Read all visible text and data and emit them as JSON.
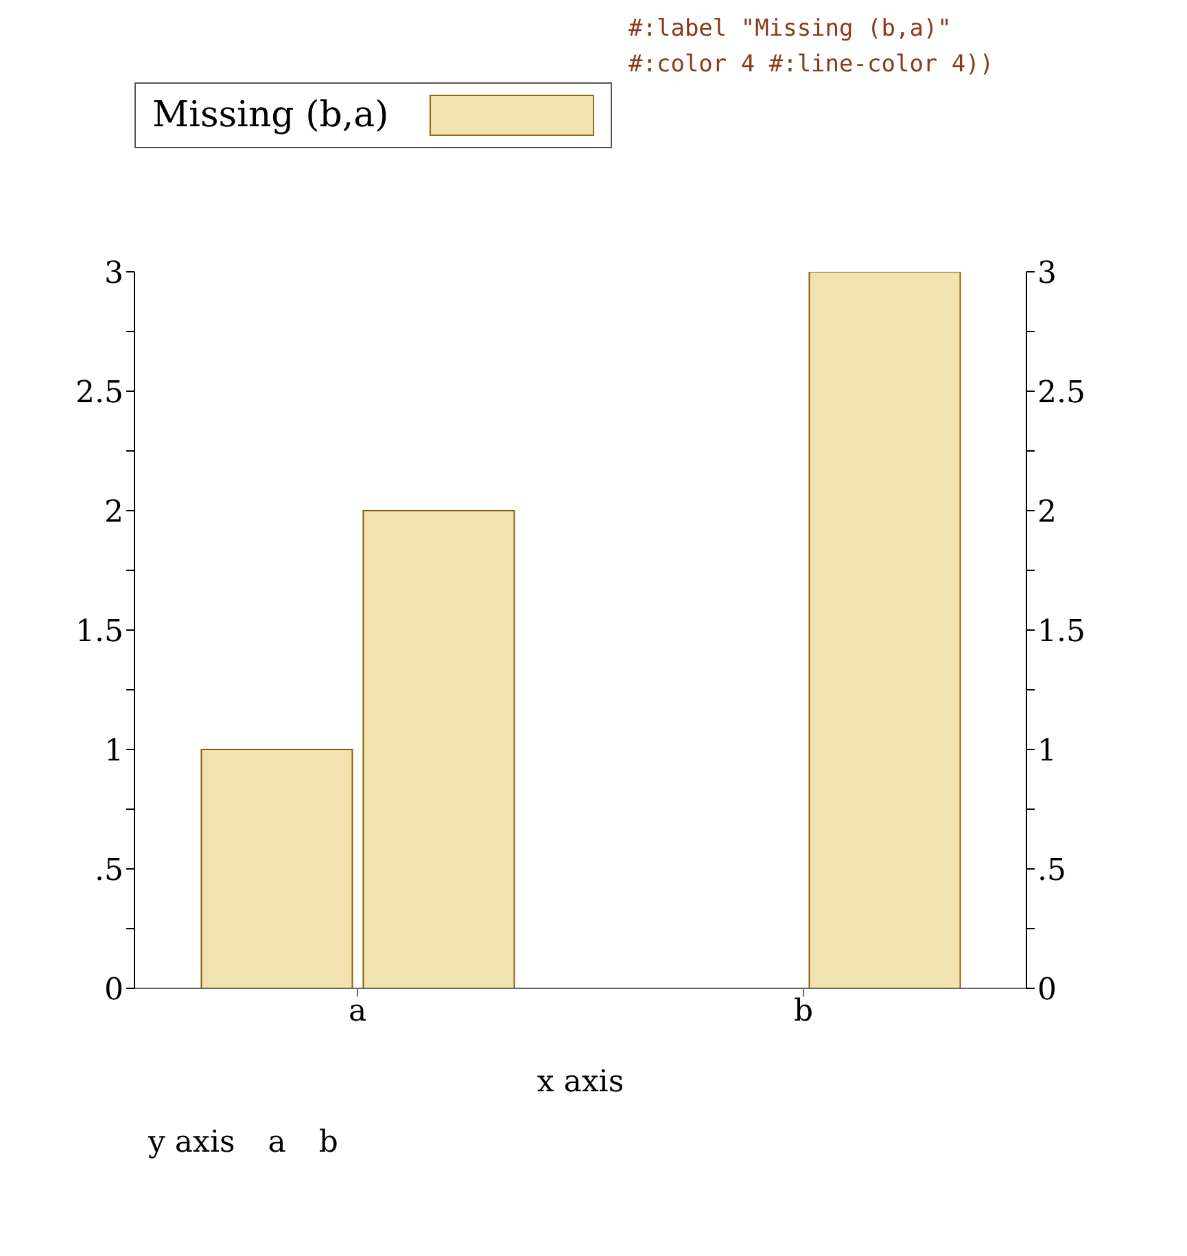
{
  "chart_data": {
    "type": "bar",
    "xlabel": "x axis",
    "categories": [
      "a",
      "b"
    ],
    "series": [
      {
        "name": "Missing (b,a)",
        "color": "#f2e2b0",
        "values": [
          1,
          null
        ]
      },
      {
        "color": "#f2e2b0",
        "values": [
          2,
          3
        ]
      }
    ],
    "ylim": [
      0,
      3
    ],
    "yticks": [
      0,
      {
        "value": 0.25,
        "label": null
      },
      {
        "value": 0.5,
        "label": ".5"
      },
      {
        "value": 0.75,
        "label": null
      },
      1,
      {
        "value": 1.25,
        "label": null
      },
      1.5,
      {
        "value": 1.75,
        "label": null
      },
      2,
      {
        "value": 2.25,
        "label": null
      },
      2.5,
      {
        "value": 2.75,
        "label": null
      },
      3
    ],
    "y2lim": [
      0,
      3
    ],
    "y2ticks": [
      0,
      {
        "value": 0.25,
        "label": null
      },
      {
        "value": 0.5,
        "label": ".5"
      },
      {
        "value": 0.75,
        "label": null
      },
      1,
      {
        "value": 1.25,
        "label": null
      },
      1.5,
      {
        "value": 1.75,
        "label": null
      },
      2,
      {
        "value": 2.25,
        "label": null
      },
      2.5,
      {
        "value": 2.75,
        "label": null
      },
      3
    ],
    "grid": false,
    "legend": "top left",
    "annotations": [
      "#:label \"Missing (b,a)\"",
      "#:color 4 #:line-color 4))",
      "y axis",
      "a",
      "b"
    ]
  }
}
